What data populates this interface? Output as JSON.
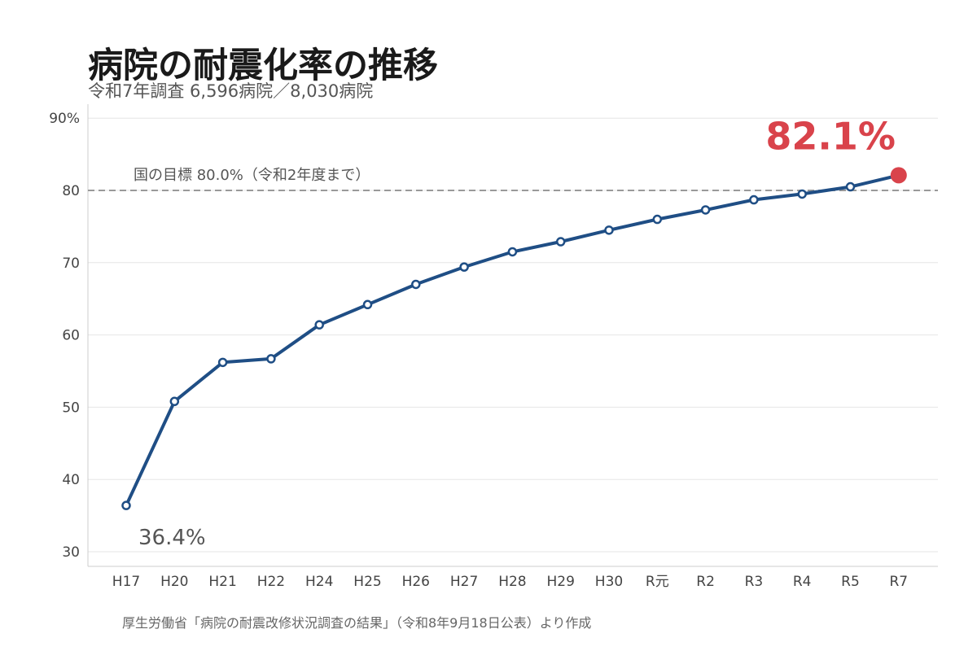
{
  "header": {
    "title": "病院の耐震化率の推移",
    "subtitle": "令和7年調査 6,596病院／8,030病院"
  },
  "footer": {
    "source": "厚生労働省「病院の耐震改修状況調査の結果」（令和8年9月18日公表）より作成"
  },
  "colors": {
    "line": "#1f4e85",
    "highlight": "#d9434b",
    "grid": "#e6e6e6",
    "target_line": "#999999"
  },
  "chart_data": {
    "type": "line",
    "categories": [
      "H17",
      "H20",
      "H21",
      "H22",
      "H24",
      "H25",
      "H26",
      "H27",
      "H28",
      "H29",
      "H30",
      "R元",
      "R2",
      "R3",
      "R4",
      "R5",
      "R7"
    ],
    "series": [
      {
        "values": [
          36.4,
          50.8,
          56.2,
          56.7,
          61.4,
          64.2,
          67.0,
          69.4,
          71.5,
          72.9,
          74.5,
          76.0,
          77.3,
          78.7,
          79.5,
          80.5,
          82.1
        ]
      }
    ],
    "ylim": [
      28,
      92
    ],
    "yticks": [
      30,
      40,
      50,
      60,
      70,
      80,
      90
    ],
    "ytick_labels": [
      "30",
      "40",
      "50",
      "60",
      "70",
      "80",
      "90%"
    ],
    "grid": true,
    "reference_line": {
      "value": 80.0,
      "label": "国の目標 80.0%（令和2年度まで）"
    },
    "annotations": {
      "first_value_label": "36.4%",
      "last_value_label": "82.1%"
    }
  }
}
